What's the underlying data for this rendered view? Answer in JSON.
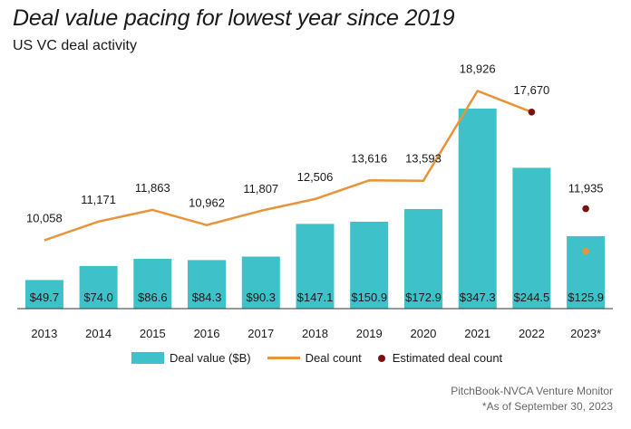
{
  "title": "Deal value pacing for lowest year since 2019",
  "subtitle": "US VC deal activity",
  "source": "PitchBook-NVCA Venture Monitor",
  "footnote": "*As of September 30, 2023",
  "legend": {
    "bars": "Deal value ($B)",
    "line": "Deal count",
    "dots": "Estimated deal count"
  },
  "colors": {
    "bar": "#3ec1c9",
    "line": "#e8943a",
    "estimated_dot": "#7a1010",
    "current_dot": "#e8943a"
  },
  "chart_data": {
    "type": "bar",
    "categories": [
      "2013",
      "2014",
      "2015",
      "2016",
      "2017",
      "2018",
      "2019",
      "2020",
      "2021",
      "2022",
      "2023*"
    ],
    "series": [
      {
        "name": "Deal value ($B)",
        "type": "bar",
        "values": [
          49.7,
          74.0,
          86.6,
          84.3,
          90.3,
          147.1,
          150.9,
          172.9,
          347.3,
          244.5,
          125.9
        ],
        "labels": [
          "$49.7",
          "$74.0",
          "$86.6",
          "$84.3",
          "$90.3",
          "$147.1",
          "$150.9",
          "$172.9",
          "$347.3",
          "$244.5",
          "$125.9"
        ]
      },
      {
        "name": "Deal count",
        "type": "line",
        "values": [
          10058,
          11171,
          11863,
          10962,
          11807,
          12506,
          13616,
          13593,
          18926,
          17670,
          null
        ],
        "labels": [
          "10,058",
          "11,171",
          "11,863",
          "10,962",
          "11,807",
          "12,506",
          "13,616",
          "13,593",
          "18,926",
          "17,670",
          ""
        ]
      },
      {
        "name": "Estimated deal count",
        "type": "scatter",
        "points": [
          {
            "category": "2022",
            "value": 17670
          },
          {
            "category": "2023*",
            "value": 11935,
            "label": "11,935"
          }
        ]
      },
      {
        "type": "scatter",
        "points": [
          {
            "category": "2023*",
            "value": 9400
          }
        ]
      }
    ],
    "grid": false
  }
}
